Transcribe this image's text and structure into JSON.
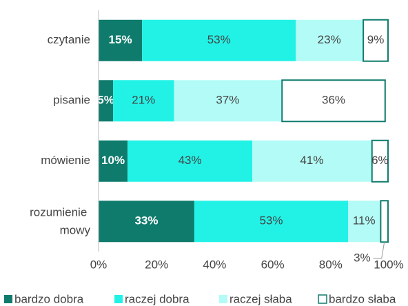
{
  "chart_data": {
    "type": "stacked_barh",
    "categories": [
      "czytanie",
      "pisanie",
      "mówienie",
      "rozumienie mowy"
    ],
    "series": [
      {
        "name": "bardzo dobra",
        "color": "#0f7b6c",
        "values": [
          15,
          5,
          10,
          33
        ],
        "value_labels": [
          "15%",
          "5%",
          "10%",
          "33%"
        ]
      },
      {
        "name": "raczej dobra",
        "color": "#22f2e6",
        "values": [
          53,
          21,
          43,
          53
        ],
        "value_labels": [
          "53%",
          "21%",
          "43%",
          "53%"
        ]
      },
      {
        "name": "raczej słaba",
        "color": "#b3fbf6",
        "values": [
          23,
          37,
          41,
          11
        ],
        "value_labels": [
          "23%",
          "37%",
          "41%",
          "11%"
        ]
      },
      {
        "name": "bardzo słaba",
        "color": "#ffffff",
        "values": [
          9,
          36,
          6,
          3
        ],
        "value_labels": [
          "9%",
          "36%",
          "6%",
          "3%"
        ]
      }
    ],
    "xlim": [
      0,
      100
    ],
    "xticks": [
      {
        "value": 0,
        "label": "0%"
      },
      {
        "value": 20,
        "label": "20%"
      },
      {
        "value": 40,
        "label": "40%"
      },
      {
        "value": 60,
        "label": "60%"
      },
      {
        "value": 80,
        "label": "80%"
      },
      {
        "value": 100,
        "label": "100%"
      }
    ],
    "legend": "bottom"
  }
}
